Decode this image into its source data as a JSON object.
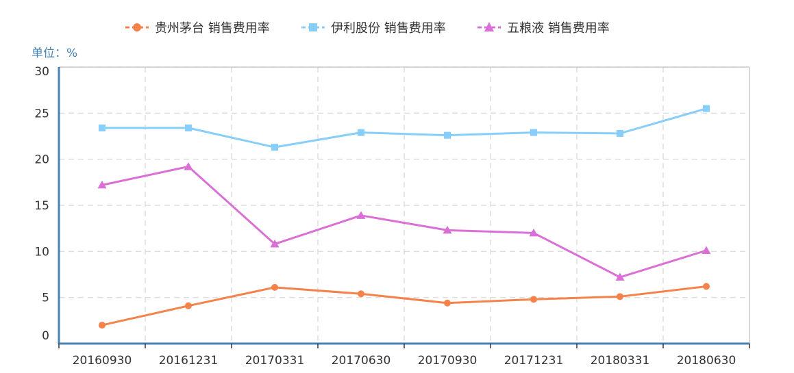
{
  "chart_data": {
    "type": "line",
    "unit_label": "单位：%",
    "categories": [
      "20160930",
      "20161231",
      "20170331",
      "20170630",
      "20170930",
      "20171231",
      "20180331",
      "20180630"
    ],
    "series": [
      {
        "name": "贵州茅台 销售费用率",
        "marker": "circle",
        "color": "#F4824A",
        "values": [
          2.0,
          4.1,
          6.1,
          5.4,
          4.4,
          4.8,
          5.1,
          6.2
        ]
      },
      {
        "name": "伊利股份 销售费用率",
        "marker": "square",
        "color": "#87CEFA",
        "values": [
          23.4,
          23.4,
          21.3,
          22.9,
          22.6,
          22.9,
          22.8,
          25.5
        ]
      },
      {
        "name": "五粮液 销售费用率",
        "marker": "triangle",
        "color": "#DA70D6",
        "values": [
          17.2,
          19.2,
          10.8,
          13.9,
          12.3,
          12.0,
          7.2,
          10.1
        ]
      }
    ],
    "y_ticks": [
      "0",
      "5",
      "10",
      "15",
      "20",
      "25",
      "30"
    ],
    "ylim": [
      0,
      30
    ],
    "grid": true,
    "legend_position": "top-center",
    "axis_color": "#4682B4"
  }
}
